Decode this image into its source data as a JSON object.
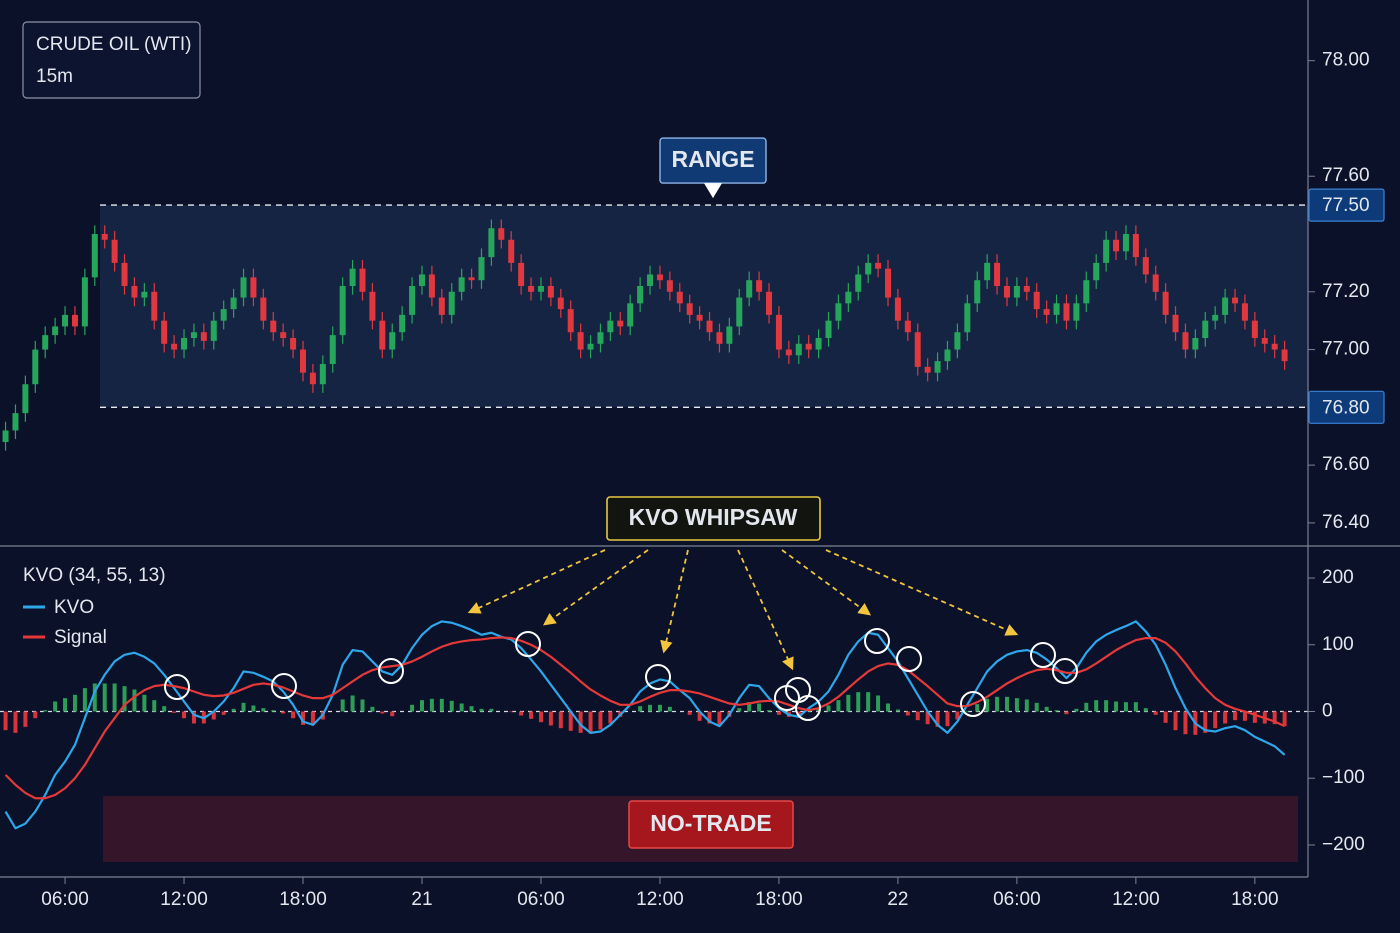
{
  "chart_data": [
    {
      "type": "candlestick",
      "title": "CRUDE OIL (WTI)",
      "subtitle": "15m",
      "up_color": "#26a65b",
      "down_color": "#e0383e",
      "x": [
        3,
        3.5,
        4,
        4.5,
        5,
        5.5,
        6,
        6.5,
        7,
        7.5,
        8,
        8.5,
        9,
        9.5,
        10,
        10.5,
        11,
        11.5,
        12,
        12.5,
        13,
        13.5,
        14,
        14.5,
        15,
        15.5,
        16,
        16.5,
        17,
        17.5,
        18,
        18.5,
        19,
        19.5,
        20,
        20.5,
        21,
        21.5,
        22,
        22.5,
        23,
        23.5,
        24,
        24.5,
        25,
        25.5,
        26,
        26.5,
        27,
        27.5,
        28,
        28.5,
        29,
        29.5,
        30,
        30.5,
        31,
        31.5,
        32,
        32.5,
        33,
        33.5,
        34,
        34.5,
        35,
        35.5,
        36,
        36.5,
        37,
        37.5,
        38,
        38.5,
        39,
        39.5,
        40,
        40.5,
        41,
        41.5,
        42,
        42.5,
        43,
        43.5,
        44,
        44.5,
        45,
        45.5,
        46,
        46.5,
        47,
        47.5,
        48,
        48.5,
        49,
        49.5,
        50,
        50.5,
        51,
        51.5,
        52,
        52.5,
        53,
        53.5,
        54,
        54.5,
        55,
        55.5,
        56,
        56.5,
        57,
        57.5,
        58,
        58.5,
        59,
        59.5,
        60,
        60.5,
        61,
        61.5,
        62,
        62.5,
        63,
        63.5,
        64,
        64.5,
        65,
        65.5,
        66,
        66.5,
        67,
        67.5
      ],
      "open": [
        76.68,
        76.72,
        76.78,
        76.88,
        77.0,
        77.05,
        77.08,
        77.12,
        77.08,
        77.25,
        77.4,
        77.38,
        77.3,
        77.22,
        77.18,
        77.2,
        77.1,
        77.02,
        77.0,
        77.04,
        77.06,
        77.03,
        77.1,
        77.14,
        77.18,
        77.25,
        77.18,
        77.1,
        77.06,
        77.04,
        77.0,
        76.92,
        76.88,
        76.95,
        77.05,
        77.22,
        77.28,
        77.2,
        77.1,
        77.0,
        77.06,
        77.12,
        77.22,
        77.26,
        77.18,
        77.12,
        77.2,
        77.25,
        77.24,
        77.32,
        77.42,
        77.38,
        77.3,
        77.22,
        77.2,
        77.22,
        77.18,
        77.14,
        77.06,
        77.0,
        77.02,
        77.06,
        77.1,
        77.08,
        77.16,
        77.22,
        77.26,
        77.24,
        77.2,
        77.16,
        77.12,
        77.1,
        77.06,
        77.02,
        77.08,
        77.18,
        77.24,
        77.2,
        77.12,
        77.0,
        76.98,
        77.02,
        77.0,
        77.04,
        77.1,
        77.16,
        77.2,
        77.26,
        77.3,
        77.28,
        77.18,
        77.1,
        77.06,
        76.94,
        76.92,
        76.96,
        77.0,
        77.06,
        77.16,
        77.24,
        77.3,
        77.22,
        77.18,
        77.22,
        77.2,
        77.14,
        77.12,
        77.16,
        77.1,
        77.16,
        77.24,
        77.3,
        77.38,
        77.34,
        77.4,
        77.32,
        77.26,
        77.2,
        77.12,
        77.06,
        77.0,
        77.04,
        77.1,
        77.12,
        77.18,
        77.16,
        77.1,
        77.04,
        77.02,
        77.0
      ],
      "high": [
        76.75,
        76.81,
        76.91,
        77.03,
        77.08,
        77.11,
        77.15,
        77.15,
        77.28,
        77.43,
        77.43,
        77.41,
        77.33,
        77.25,
        77.23,
        77.23,
        77.13,
        77.05,
        77.07,
        77.09,
        77.09,
        77.13,
        77.17,
        77.21,
        77.28,
        77.28,
        77.21,
        77.13,
        77.09,
        77.07,
        77.03,
        76.95,
        76.98,
        77.08,
        77.25,
        77.31,
        77.31,
        77.23,
        77.13,
        77.09,
        77.15,
        77.25,
        77.29,
        77.29,
        77.21,
        77.23,
        77.28,
        77.28,
        77.35,
        77.45,
        77.45,
        77.41,
        77.33,
        77.25,
        77.25,
        77.25,
        77.21,
        77.17,
        77.09,
        77.05,
        77.09,
        77.13,
        77.13,
        77.19,
        77.25,
        77.29,
        77.29,
        77.27,
        77.23,
        77.19,
        77.15,
        77.13,
        77.09,
        77.11,
        77.21,
        77.27,
        77.27,
        77.23,
        77.15,
        77.03,
        77.05,
        77.05,
        77.07,
        77.13,
        77.19,
        77.23,
        77.29,
        77.33,
        77.33,
        77.31,
        77.21,
        77.13,
        77.09,
        76.97,
        76.99,
        77.03,
        77.09,
        77.19,
        77.27,
        77.33,
        77.33,
        77.25,
        77.25,
        77.25,
        77.23,
        77.17,
        77.19,
        77.19,
        77.19,
        77.27,
        77.33,
        77.41,
        77.41,
        77.43,
        77.43,
        77.35,
        77.29,
        77.23,
        77.15,
        77.09,
        77.07,
        77.13,
        77.15,
        77.21,
        77.21,
        77.19,
        77.13,
        77.07,
        77.05,
        77.03
      ],
      "low": [
        76.65,
        76.69,
        76.75,
        76.85,
        76.97,
        77.02,
        77.05,
        77.05,
        77.05,
        77.22,
        77.35,
        77.27,
        77.19,
        77.15,
        77.15,
        77.07,
        76.99,
        76.97,
        76.97,
        77.01,
        77.0,
        77.0,
        77.07,
        77.11,
        77.15,
        77.15,
        77.07,
        77.03,
        77.01,
        76.97,
        76.89,
        76.85,
        76.85,
        76.92,
        77.02,
        77.19,
        77.17,
        77.07,
        76.97,
        76.97,
        77.03,
        77.09,
        77.19,
        77.15,
        77.09,
        77.09,
        77.17,
        77.21,
        77.21,
        77.29,
        77.35,
        77.27,
        77.19,
        77.17,
        77.17,
        77.15,
        77.11,
        77.03,
        76.97,
        76.97,
        76.99,
        77.03,
        77.05,
        77.05,
        77.13,
        77.19,
        77.21,
        77.17,
        77.13,
        77.09,
        77.07,
        77.03,
        76.99,
        76.99,
        77.05,
        77.15,
        77.17,
        77.09,
        76.97,
        76.95,
        76.95,
        76.97,
        76.97,
        77.01,
        77.07,
        77.13,
        77.17,
        77.23,
        77.25,
        77.15,
        77.07,
        77.03,
        76.91,
        76.89,
        76.89,
        76.93,
        76.97,
        77.03,
        77.13,
        77.21,
        77.19,
        77.15,
        77.15,
        77.17,
        77.11,
        77.09,
        77.09,
        77.07,
        77.07,
        77.13,
        77.21,
        77.27,
        77.31,
        77.31,
        77.29,
        77.23,
        77.17,
        77.09,
        77.03,
        76.97,
        76.97,
        77.01,
        77.07,
        77.09,
        77.13,
        77.07,
        77.01,
        76.99,
        76.97,
        76.93
      ],
      "close": [
        76.72,
        76.78,
        76.88,
        77.0,
        77.05,
        77.08,
        77.12,
        77.08,
        77.25,
        77.4,
        77.38,
        77.3,
        77.22,
        77.18,
        77.2,
        77.1,
        77.02,
        77.0,
        77.04,
        77.06,
        77.03,
        77.1,
        77.14,
        77.18,
        77.25,
        77.18,
        77.1,
        77.06,
        77.04,
        77.0,
        76.92,
        76.88,
        76.95,
        77.05,
        77.22,
        77.28,
        77.2,
        77.1,
        77.0,
        77.06,
        77.12,
        77.22,
        77.26,
        77.18,
        77.12,
        77.2,
        77.25,
        77.24,
        77.32,
        77.42,
        77.38,
        77.3,
        77.22,
        77.2,
        77.22,
        77.18,
        77.14,
        77.06,
        77.0,
        77.02,
        77.06,
        77.1,
        77.08,
        77.16,
        77.22,
        77.26,
        77.24,
        77.2,
        77.16,
        77.12,
        77.1,
        77.06,
        77.02,
        77.08,
        77.18,
        77.24,
        77.2,
        77.12,
        77.0,
        76.98,
        77.02,
        77.0,
        77.04,
        77.1,
        77.16,
        77.2,
        77.26,
        77.3,
        77.28,
        77.18,
        77.1,
        77.06,
        76.94,
        76.92,
        76.96,
        77.0,
        77.06,
        77.16,
        77.24,
        77.3,
        77.22,
        77.18,
        77.22,
        77.2,
        77.14,
        77.12,
        77.16,
        77.1,
        77.16,
        77.24,
        77.3,
        77.38,
        77.34,
        77.4,
        77.32,
        77.26,
        77.2,
        77.12,
        77.06,
        77.0,
        77.04,
        77.1,
        77.12,
        77.18,
        77.16,
        77.1,
        77.04,
        77.02,
        77.0,
        76.96
      ],
      "xlim": [
        2.72,
        68.68
      ],
      "ylim": [
        76.32,
        78.21
      ],
      "yticks": [
        {
          "value": 76.4,
          "label": "76.40"
        },
        {
          "value": 76.6,
          "label": "76.60"
        },
        {
          "value": 77.0,
          "label": "77.00"
        },
        {
          "value": 77.2,
          "label": "77.20"
        },
        {
          "value": 77.6,
          "label": "77.60"
        },
        {
          "value": 78.0,
          "label": "78.00"
        }
      ],
      "range": {
        "label": "RANGE",
        "upper": {
          "value": 77.5,
          "label": "77.50"
        },
        "lower": {
          "value": 76.8,
          "label": "76.80"
        }
      }
    },
    {
      "type": "line",
      "title": "KVO (34, 55, 13)",
      "x": [
        3,
        3.5,
        4,
        4.5,
        5,
        5.5,
        6,
        6.5,
        7,
        7.5,
        8,
        8.5,
        9,
        9.5,
        10,
        10.5,
        11,
        11.5,
        12,
        12.5,
        13,
        13.5,
        14,
        14.5,
        15,
        15.5,
        16,
        16.5,
        17,
        17.5,
        18,
        18.5,
        19,
        19.5,
        20,
        20.5,
        21,
        21.5,
        22,
        22.5,
        23,
        23.5,
        24,
        24.5,
        25,
        25.5,
        26,
        26.5,
        27,
        27.5,
        28,
        28.5,
        29,
        29.5,
        30,
        30.5,
        31,
        31.5,
        32,
        32.5,
        33,
        33.5,
        34,
        34.5,
        35,
        35.5,
        36,
        36.5,
        37,
        37.5,
        38,
        38.5,
        39,
        39.5,
        40,
        40.5,
        41,
        41.5,
        42,
        42.5,
        43,
        43.5,
        44,
        44.5,
        45,
        45.5,
        46,
        46.5,
        47,
        47.5,
        48,
        48.5,
        49,
        49.5,
        50,
        50.5,
        51,
        51.5,
        52,
        52.5,
        53,
        53.5,
        54,
        54.5,
        55,
        55.5,
        56,
        56.5,
        57,
        57.5,
        58,
        58.5,
        59,
        59.5,
        60,
        60.5,
        61,
        61.5,
        62,
        62.5,
        63,
        63.5,
        64,
        64.5,
        65,
        65.5,
        66,
        66.5,
        67,
        67.5
      ],
      "series": [
        {
          "name": "KVO",
          "color": "#2ea6ea",
          "values": [
            -150,
            -175,
            -168,
            -150,
            -125,
            -95,
            -75,
            -50,
            -10,
            30,
            55,
            75,
            85,
            88,
            82,
            72,
            55,
            35,
            15,
            -5,
            -10,
            0,
            15,
            35,
            60,
            58,
            52,
            45,
            30,
            10,
            -15,
            -20,
            -5,
            25,
            70,
            92,
            90,
            75,
            60,
            55,
            70,
            95,
            115,
            128,
            135,
            133,
            128,
            122,
            115,
            118,
            112,
            108,
            95,
            78,
            60,
            40,
            20,
            0,
            -20,
            -32,
            -30,
            -20,
            -5,
            10,
            30,
            42,
            48,
            45,
            32,
            20,
            0,
            -15,
            -22,
            -5,
            20,
            40,
            38,
            20,
            5,
            -5,
            -8,
            5,
            15,
            30,
            55,
            85,
            105,
            118,
            115,
            95,
            75,
            50,
            25,
            0,
            -20,
            -32,
            -15,
            10,
            35,
            60,
            75,
            85,
            90,
            92,
            88,
            78,
            65,
            50,
            65,
            88,
            105,
            115,
            122,
            128,
            135,
            120,
            100,
            70,
            35,
            5,
            -18,
            -28,
            -30,
            -25,
            -22,
            -28,
            -38,
            -45,
            -52,
            -65
          ]
        },
        {
          "name": "Signal",
          "color": "#e53939",
          "values": [
            -95,
            -110,
            -122,
            -130,
            -130,
            -125,
            -115,
            -100,
            -80,
            -55,
            -30,
            -10,
            10,
            22,
            32,
            38,
            40,
            38,
            35,
            30,
            25,
            23,
            24,
            28,
            34,
            40,
            42,
            40,
            36,
            30,
            24,
            20,
            20,
            25,
            35,
            45,
            55,
            62,
            66,
            68,
            70,
            75,
            82,
            90,
            97,
            102,
            105,
            107,
            108,
            110,
            111,
            110,
            106,
            100,
            92,
            82,
            70,
            58,
            45,
            33,
            24,
            16,
            10,
            10,
            15,
            22,
            28,
            32,
            32,
            30,
            27,
            22,
            17,
            12,
            10,
            12,
            15,
            16,
            15,
            10,
            5,
            2,
            5,
            12,
            22,
            35,
            48,
            60,
            68,
            72,
            70,
            62,
            50,
            38,
            25,
            12,
            8,
            8,
            14,
            22,
            32,
            42,
            50,
            57,
            62,
            64,
            62,
            58,
            58,
            63,
            72,
            82,
            92,
            100,
            107,
            110,
            110,
            103,
            90,
            72,
            52,
            35,
            20,
            10,
            4,
            0,
            -5,
            -10,
            -15,
            -22
          ]
        }
      ],
      "histogram": {
        "up_color": "#2e9e57",
        "down_color": "#d9343b",
        "values": [
          -28,
          -32,
          -23,
          -10,
          2,
          15,
          20,
          25,
          35,
          42,
          42,
          42,
          38,
          33,
          25,
          17,
          8,
          -2,
          -10,
          -18,
          -18,
          -12,
          -5,
          4,
          13,
          9,
          5,
          2,
          -3,
          -10,
          -20,
          -20,
          -12,
          0,
          18,
          24,
          18,
          7,
          -3,
          -7,
          0,
          10,
          17,
          19,
          19,
          16,
          12,
          8,
          4,
          4,
          0,
          -1,
          -6,
          -11,
          -16,
          -21,
          -25,
          -29,
          -32,
          -33,
          -27,
          -18,
          -8,
          0,
          8,
          10,
          10,
          7,
          0,
          -5,
          -14,
          -18,
          -20,
          -8,
          5,
          14,
          12,
          2,
          -5,
          -8,
          -7,
          2,
          5,
          9,
          17,
          25,
          29,
          29,
          24,
          12,
          3,
          -6,
          -13,
          -19,
          -23,
          -22,
          -12,
          1,
          11,
          19,
          22,
          22,
          20,
          18,
          13,
          7,
          2,
          -4,
          4,
          13,
          17,
          17,
          15,
          14,
          14,
          5,
          -5,
          -17,
          -28,
          -34,
          -35,
          -32,
          -25,
          -18,
          -13,
          -14,
          -17,
          -18,
          -19,
          -22
        ]
      },
      "xlim": [
        2.72,
        68.68
      ],
      "ylim": [
        -248,
        248
      ],
      "yticks": [
        {
          "value": -200,
          "label": "−200"
        },
        {
          "value": -100,
          "label": "−100"
        },
        0,
        100,
        200
      ],
      "xticks": [
        {
          "value": 6,
          "label": "06:00"
        },
        {
          "value": 12,
          "label": "12:00"
        },
        {
          "value": 18,
          "label": "18:00"
        },
        {
          "value": 24,
          "label": "21"
        },
        {
          "value": 30,
          "label": "06:00"
        },
        {
          "value": 36,
          "label": "12:00"
        },
        {
          "value": 42,
          "label": "18:00"
        },
        {
          "value": 48,
          "label": "22"
        },
        {
          "value": 54,
          "label": "06:00"
        },
        {
          "value": 60,
          "label": "12:00"
        },
        {
          "value": 66,
          "label": "18:00"
        }
      ],
      "annotations": {
        "whipsaw": "KVO WHIPSAW",
        "no_trade": "NO-TRADE"
      }
    }
  ]
}
